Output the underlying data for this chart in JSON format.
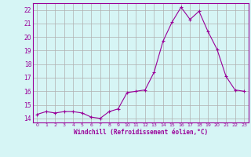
{
  "x": [
    0,
    1,
    2,
    3,
    4,
    5,
    6,
    7,
    8,
    9,
    10,
    11,
    12,
    13,
    14,
    15,
    16,
    17,
    18,
    19,
    20,
    21,
    22,
    23
  ],
  "y": [
    14.3,
    14.5,
    14.4,
    14.5,
    14.5,
    14.4,
    14.1,
    14.0,
    14.5,
    14.7,
    15.9,
    16.0,
    16.1,
    17.4,
    19.7,
    21.1,
    22.2,
    21.3,
    21.9,
    20.4,
    19.1,
    17.1,
    16.1,
    16.0
  ],
  "line_color": "#990099",
  "marker": "+",
  "bg_color": "#d6f5f5",
  "grid_color": "#b0b0b0",
  "xlabel": "Windchill (Refroidissement éolien,°C)",
  "ylabel_ticks": [
    14,
    15,
    16,
    17,
    18,
    19,
    20,
    21,
    22
  ],
  "xlim": [
    -0.5,
    23.5
  ],
  "ylim": [
    13.7,
    22.5
  ]
}
